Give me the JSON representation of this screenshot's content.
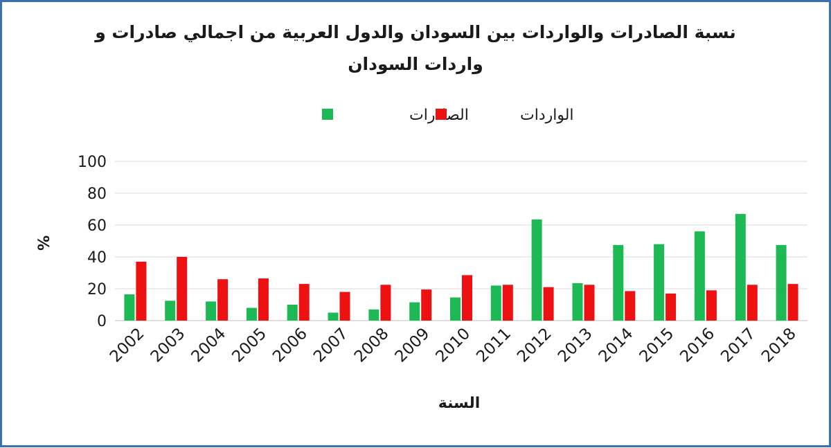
{
  "chart_data": {
    "type": "bar",
    "title_line1": "نسبة الصادرات والواردات بين السودان والدول العربية من اجمالي صادرات و",
    "title_line2": "واردات السودان",
    "xlabel": "السنة",
    "ylabel": "%",
    "ylim": [
      0,
      100
    ],
    "yticks": [
      0,
      20,
      40,
      60,
      80,
      100
    ],
    "grid": true,
    "legend_position": "top",
    "categories": [
      "2002",
      "2003",
      "2004",
      "2005",
      "2006",
      "2007",
      "2008",
      "2009",
      "2010",
      "2011",
      "2012",
      "2013",
      "2014",
      "2015",
      "2016",
      "2017",
      "2018"
    ],
    "series": [
      {
        "name": "الصادرات",
        "color": "#1db954",
        "values": [
          16.5,
          12.5,
          12,
          8,
          10,
          5,
          7,
          11.5,
          14.5,
          22,
          63.5,
          23.5,
          47.5,
          48,
          56,
          67,
          47.5
        ]
      },
      {
        "name": "الواردات",
        "color": "#ee1111",
        "values": [
          37,
          40,
          26,
          26.5,
          23,
          18,
          22.5,
          19.5,
          28.5,
          22.5,
          21,
          22.5,
          18.5,
          17,
          19,
          22.5,
          23
        ]
      }
    ]
  }
}
